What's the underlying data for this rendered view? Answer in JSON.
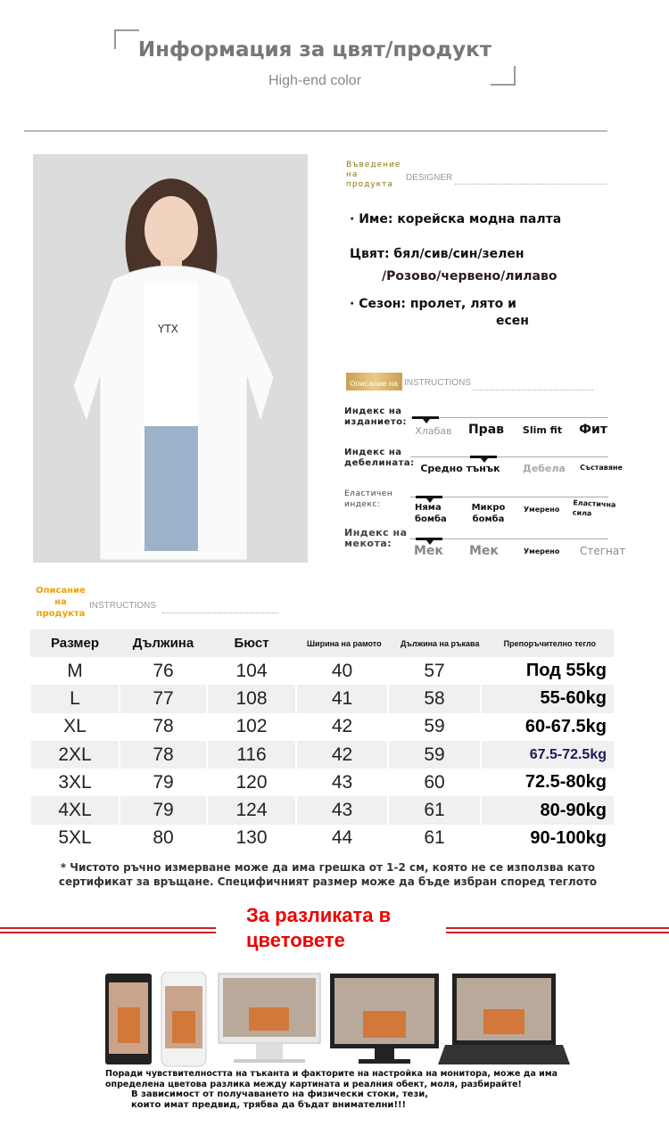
{
  "header": {
    "title": "Информация за цвят/продукт",
    "subtitle": "High-end color"
  },
  "photo": {
    "shirt_print": "YTX"
  },
  "intro": {
    "label": "Въведение на продукта",
    "label_en": "DESIGNER",
    "name": "· Име: корейска модна палта",
    "color_1": "Цвят: бял/сив/син/зелен",
    "color_2": "/Розово/червено/лилаво",
    "season_1": "· Сезон: пролет, лято и",
    "season_2": "есен"
  },
  "instructions": {
    "label": "Описание на",
    "label_en": "INSTRUCTIONS",
    "indices": [
      {
        "label": "Индекс на изданието:",
        "options": [
          "Хлабав",
          "Прав",
          "Slim fit",
          "Фит"
        ],
        "selected": "Хлабав"
      },
      {
        "label": "Индекс на дебелината:",
        "options": [
          "Средно тънък",
          "Дебела",
          "Съставяне"
        ],
        "selected": "Средно тънък"
      },
      {
        "label": "Еластичен индекс:",
        "options": [
          "Няма бомба",
          "Микро бомба",
          "Умерено",
          "Еластична сила"
        ],
        "selected": "Няма бомба"
      },
      {
        "label": "Индекс на мекота:",
        "options": [
          "Мек",
          "Мек",
          "Умерено",
          "Стегнат"
        ],
        "selected": "Мек"
      }
    ]
  },
  "size_table": {
    "label": "Описание на продукта",
    "label_en": "INSTRUCTIONS",
    "headers": [
      "Размер",
      "Дължина",
      "Бюст",
      "Ширина на рамото",
      "Дължина на ръкава",
      "Препоръчително тегло"
    ],
    "rows": [
      [
        "M",
        "76",
        "104",
        "40",
        "57",
        "Под 55kg"
      ],
      [
        "L",
        "77",
        "108",
        "41",
        "58",
        "55-60kg"
      ],
      [
        "XL",
        "78",
        "102",
        "42",
        "59",
        "60-67.5kg"
      ],
      [
        "2XL",
        "78",
        "116",
        "42",
        "59",
        "67.5-72.5kg"
      ],
      [
        "3XL",
        "79",
        "120",
        "43",
        "60",
        "72.5-80kg"
      ],
      [
        "4XL",
        "79",
        "124",
        "43",
        "61",
        "80-90kg"
      ],
      [
        "5XL",
        "80",
        "130",
        "44",
        "61",
        "90-100kg"
      ]
    ],
    "note_1": "* Чистото ръчно измерване може да има грешка от 1-2 см, която не се използва като",
    "note_2": "сертификат за връщане. Специфичният размер може да бъде избран според теглото"
  },
  "color_diff": {
    "title_1": "За разликата в",
    "title_2": "цветовете",
    "accent": "#e00000",
    "text_1": "Поради чувствителността на тъканта и факторите на настройка на монитора, може да има",
    "text_2": "определена цветова разлика между картината и реалния обект, моля, разбирайте!",
    "text_3": "В зависимост от получаването на физически стоки, тези,",
    "text_4": "които имат предвид, трябва да бъдат внимателни!!!"
  }
}
